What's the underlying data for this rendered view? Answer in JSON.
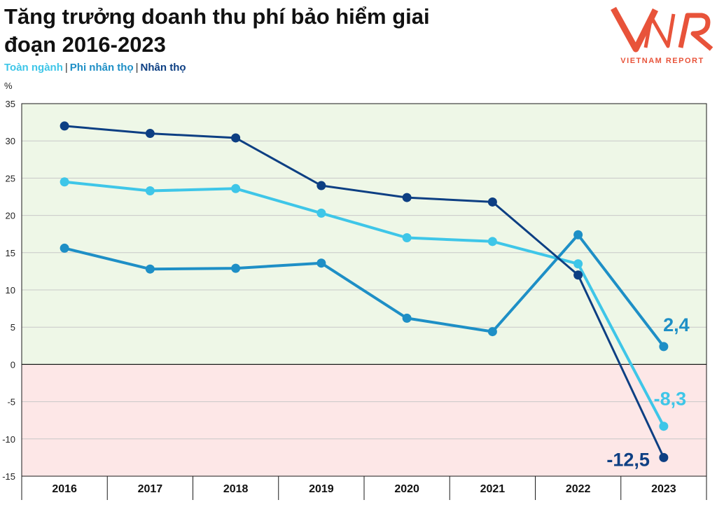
{
  "title": "Tăng trưởng doanh thu phí bảo hiểm giai đoạn 2016-2023",
  "legend": [
    {
      "label": "Toàn ngành",
      "color": "#3ec6e8"
    },
    {
      "label": "Phi nhân thọ",
      "color": "#1e8fc6"
    },
    {
      "label": "Nhân thọ",
      "color": "#0d3f83"
    }
  ],
  "legend_separator": "|",
  "unit_label": "%",
  "logo": {
    "mark": "VNR",
    "subtitle": "VIETNAM REPORT",
    "color": "#e8533a"
  },
  "colors": {
    "positive_band": "#eef7e7",
    "negative_band": "#fde7e7",
    "grid": "#c8c8c8",
    "axis": "#1a1a1a"
  },
  "chart_data": {
    "type": "line",
    "title": "Tăng trưởng doanh thu phí bảo hiểm giai đoạn 2016-2023",
    "ylabel": "%",
    "ylim": [
      -15,
      35
    ],
    "yticks": [
      35,
      30,
      25,
      20,
      15,
      10,
      5,
      0,
      -5,
      -10,
      -15
    ],
    "grid": true,
    "categories": [
      "2016",
      "2017",
      "2018",
      "2019",
      "2020",
      "2021",
      "2022",
      "2023"
    ],
    "series": [
      {
        "name": "Toàn ngành",
        "color": "#3ec6e8",
        "values": [
          24.5,
          23.3,
          23.6,
          20.3,
          17.0,
          16.5,
          13.5,
          -8.3
        ],
        "end_label": "-8,3"
      },
      {
        "name": "Phi nhân thọ",
        "color": "#1e8fc6",
        "values": [
          15.6,
          12.8,
          12.9,
          13.6,
          6.2,
          4.4,
          17.4,
          2.4
        ],
        "end_label": "2,4"
      },
      {
        "name": "Nhân thọ",
        "color": "#0d3f83",
        "values": [
          32.0,
          31.0,
          30.4,
          24.0,
          22.4,
          21.8,
          12.0,
          -12.5
        ],
        "end_label": "-12,5"
      }
    ]
  }
}
